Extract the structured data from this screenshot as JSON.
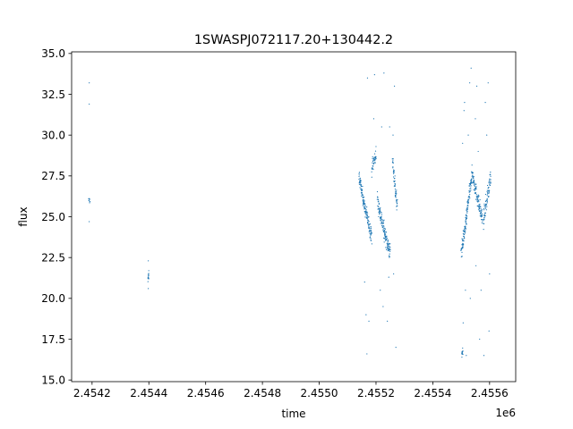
{
  "chart_data": {
    "type": "scatter",
    "title": "1SWASPJ072117.20+130442.2",
    "xlabel": "time",
    "ylabel": "flux",
    "x_offset_label": "1e6",
    "xlim": [
      2454128,
      2455692
    ],
    "ylim": [
      14.9,
      35.1
    ],
    "x_ticks": [
      2454200,
      2454400,
      2454600,
      2454800,
      2455000,
      2455200,
      2455400,
      2455600
    ],
    "x_tick_labels": [
      "2.4542",
      "2.4544",
      "2.4546",
      "2.4548",
      "2.4550",
      "2.4552",
      "2.4554",
      "2.4556"
    ],
    "y_ticks": [
      15.0,
      17.5,
      20.0,
      22.5,
      25.0,
      27.5,
      30.0,
      32.5,
      35.0
    ],
    "y_tick_labels": [
      "15.0",
      "17.5",
      "20.0",
      "22.5",
      "25.0",
      "27.5",
      "30.0",
      "32.5",
      "35.0"
    ],
    "grid": false,
    "marker_color": "#1f77b4",
    "series": [
      {
        "name": "",
        "segments": [
          {
            "x_start": 2454188,
            "x_end": 2454192,
            "y_start": 26.0,
            "y_end": 26.0,
            "spread": 0.3,
            "n": 10,
            "outliers": [
              [
                2454190,
                33.2
              ],
              [
                2454190,
                31.9
              ],
              [
                2454190,
                24.7
              ]
            ]
          },
          {
            "x_start": 2454397,
            "x_end": 2454400,
            "y_start": 21.3,
            "y_end": 21.3,
            "spread": 0.6,
            "n": 14,
            "outliers": [
              [
                2454398,
                22.3
              ],
              [
                2454398,
                20.6
              ]
            ]
          },
          {
            "x_start": 2455140,
            "x_end": 2455160,
            "y_start": 27.5,
            "y_end": 25.6,
            "spread": 0.7,
            "n": 70,
            "outliers": []
          },
          {
            "x_start": 2455160,
            "x_end": 2455185,
            "y_start": 25.6,
            "y_end": 23.8,
            "spread": 0.8,
            "n": 80,
            "outliers": [
              [
                2455170,
                33.5
              ],
              [
                2455165,
                19.0
              ],
              [
                2455175,
                18.6
              ],
              [
                2455160,
                21.0
              ],
              [
                2455168,
                16.6
              ]
            ]
          },
          {
            "x_start": 2455185,
            "x_end": 2455200,
            "y_start": 28.0,
            "y_end": 28.8,
            "spread": 0.9,
            "n": 40,
            "outliers": [
              [
                2455195,
                33.7
              ],
              [
                2455192,
                31.0
              ],
              [
                2455200,
                29.3
              ]
            ]
          },
          {
            "x_start": 2455205,
            "x_end": 2455230,
            "y_start": 26.0,
            "y_end": 24.0,
            "spread": 0.9,
            "n": 80,
            "outliers": [
              [
                2455220,
                30.5
              ],
              [
                2455215,
                20.5
              ],
              [
                2455225,
                19.5
              ],
              [
                2455228,
                33.8
              ]
            ]
          },
          {
            "x_start": 2455230,
            "x_end": 2455250,
            "y_start": 24.0,
            "y_end": 22.8,
            "spread": 0.9,
            "n": 70,
            "outliers": [
              [
                2455240,
                18.6
              ],
              [
                2455245,
                21.3
              ],
              [
                2455248,
                30.5
              ]
            ]
          },
          {
            "x_start": 2455258,
            "x_end": 2455275,
            "y_start": 28.5,
            "y_end": 25.5,
            "spread": 0.9,
            "n": 60,
            "outliers": [
              [
                2455265,
                33.0
              ],
              [
                2455260,
                30.0
              ],
              [
                2455270,
                17.0
              ],
              [
                2455262,
                21.5
              ]
            ]
          },
          {
            "x_start": 2455500,
            "x_end": 2455520,
            "y_start": 22.8,
            "y_end": 25.0,
            "spread": 0.8,
            "n": 80,
            "outliers": [
              [
                2455505,
                29.5
              ],
              [
                2455510,
                31.5
              ],
              [
                2455515,
                20.5
              ],
              [
                2455518,
                16.5
              ],
              [
                2455507,
                18.5
              ]
            ]
          },
          {
            "x_start": 2455502,
            "x_end": 2455506,
            "y_start": 16.6,
            "y_end": 16.6,
            "spread": 0.5,
            "n": 12,
            "outliers": []
          },
          {
            "x_start": 2455520,
            "x_end": 2455540,
            "y_start": 25.3,
            "y_end": 27.8,
            "spread": 0.8,
            "n": 70,
            "outliers": [
              [
                2455525,
                30.0
              ],
              [
                2455530,
                33.2
              ],
              [
                2455512,
                32.0
              ],
              [
                2455535,
                34.1
              ],
              [
                2455532,
                20.0
              ]
            ]
          },
          {
            "x_start": 2455540,
            "x_end": 2455575,
            "y_start": 27.5,
            "y_end": 24.8,
            "spread": 0.9,
            "n": 100,
            "outliers": [
              [
                2455550,
                31.0
              ],
              [
                2455555,
                33.0
              ],
              [
                2455560,
                29.0
              ],
              [
                2455565,
                17.5
              ],
              [
                2455552,
                22.0
              ],
              [
                2455570,
                20.5
              ]
            ]
          },
          {
            "x_start": 2455578,
            "x_end": 2455605,
            "y_start": 24.8,
            "y_end": 27.5,
            "spread": 0.9,
            "n": 80,
            "outliers": [
              [
                2455585,
                32.0
              ],
              [
                2455590,
                30.0
              ],
              [
                2455595,
                33.2
              ],
              [
                2455600,
                21.5
              ],
              [
                2455598,
                18.0
              ],
              [
                2455580,
                16.5
              ]
            ]
          }
        ]
      }
    ]
  }
}
